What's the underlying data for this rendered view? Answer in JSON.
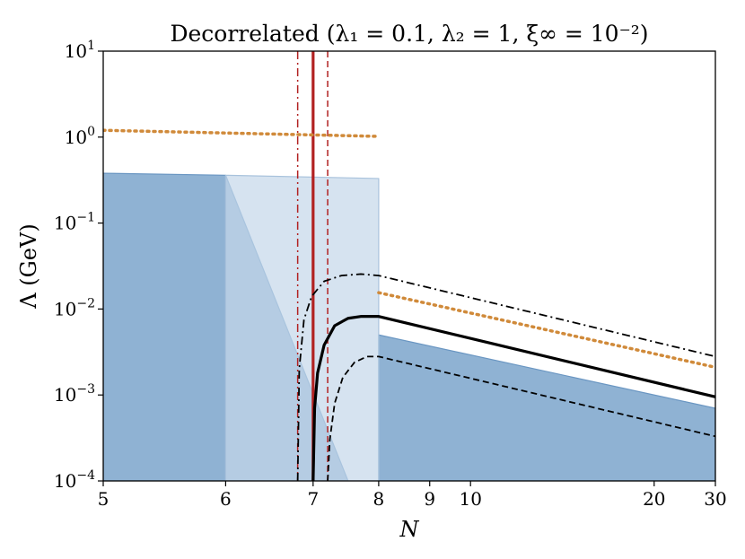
{
  "chart_data": {
    "type": "line",
    "title": "Decorrelated (λ₁ = 0.1, λ₂ = 1, ξ∞ = 10⁻²)",
    "xlabel": "N",
    "ylabel": "Λ (GeV)",
    "x_scale": "reciprocal",
    "y_scale": "log",
    "xlim": [
      5,
      30
    ],
    "ylim": [
      0.0001,
      10
    ],
    "grid": false,
    "x_ticks": [
      {
        "value": 5,
        "label": "5"
      },
      {
        "value": 6,
        "label": "6"
      },
      {
        "value": 7,
        "label": "7"
      },
      {
        "value": 8,
        "label": "8"
      },
      {
        "value": 9,
        "label": "9"
      },
      {
        "value": 10,
        "label": "10"
      },
      {
        "value": 20,
        "label": "20"
      },
      {
        "value": 30,
        "label": "30"
      }
    ],
    "y_ticks": [
      {
        "value": 0.0001,
        "base": "10",
        "exp": "−4"
      },
      {
        "value": 0.001,
        "base": "10",
        "exp": "−3"
      },
      {
        "value": 0.01,
        "base": "10",
        "exp": "−2"
      },
      {
        "value": 0.1,
        "base": "10",
        "exp": "−1"
      },
      {
        "value": 1,
        "base": "10",
        "exp": "0"
      },
      {
        "value": 10,
        "base": "10",
        "exp": "1"
      }
    ],
    "regions": [
      {
        "kind": "excluded-dark",
        "color": "#8fb2d3",
        "stroke": "#6a96c2",
        "opacity": 1,
        "points": [
          [
            5,
            0.0001
          ],
          [
            5,
            0.38
          ],
          [
            6,
            0.36
          ],
          [
            7.5,
            0.0001
          ]
        ]
      },
      {
        "kind": "excluded-dark",
        "color": "#8fb2d3",
        "stroke": "#6a96c2",
        "opacity": 1,
        "points": [
          [
            8,
            0.0001
          ],
          [
            8,
            0.005
          ],
          [
            30,
            0.0007
          ],
          [
            30,
            0.0001
          ]
        ]
      },
      {
        "kind": "excluded-light",
        "color": "#c5d7e9",
        "stroke": "#a8c2dc",
        "opacity": 0.7,
        "points": [
          [
            6,
            0.0001
          ],
          [
            6,
            0.36
          ],
          [
            8,
            0.33
          ],
          [
            8,
            0.0001
          ]
        ]
      }
    ],
    "series": [
      {
        "style": "dotted",
        "color": "#d08a3a",
        "width": 3.5,
        "points": [
          [
            5,
            1.2
          ],
          [
            8,
            1.02
          ]
        ]
      },
      {
        "style": "dotted",
        "color": "#d08a3a",
        "width": 3.5,
        "points": [
          [
            8,
            0.0155
          ],
          [
            30,
            0.0021
          ]
        ]
      },
      {
        "style": "solid",
        "color": "#000000",
        "width": 3.2,
        "points": [
          [
            7.0,
            0.0001
          ],
          [
            7.02,
            0.0007
          ],
          [
            7.06,
            0.0018
          ],
          [
            7.15,
            0.0038
          ],
          [
            7.3,
            0.0064
          ],
          [
            7.5,
            0.0078
          ],
          [
            7.7,
            0.0082
          ],
          [
            8.0,
            0.0082
          ],
          [
            30,
            0.00095
          ]
        ]
      },
      {
        "style": "dashdot",
        "color": "#000000",
        "width": 1.8,
        "points": [
          [
            6.8,
            0.0001
          ],
          [
            6.82,
            0.002
          ],
          [
            6.88,
            0.0075
          ],
          [
            6.98,
            0.014
          ],
          [
            7.15,
            0.021
          ],
          [
            7.4,
            0.0245
          ],
          [
            7.7,
            0.0255
          ],
          [
            8.0,
            0.0245
          ],
          [
            30,
            0.0028
          ]
        ]
      },
      {
        "style": "dashed",
        "color": "#000000",
        "width": 1.8,
        "points": [
          [
            7.2,
            0.0001
          ],
          [
            7.23,
            0.0003
          ],
          [
            7.3,
            0.0008
          ],
          [
            7.42,
            0.0016
          ],
          [
            7.6,
            0.0024
          ],
          [
            7.8,
            0.0028
          ],
          [
            8.0,
            0.0028
          ],
          [
            30,
            0.00033
          ]
        ]
      }
    ],
    "vlines": [
      {
        "x": 7.0,
        "style": "solid",
        "color": "#b22222",
        "width": 3.2
      },
      {
        "x": 6.8,
        "style": "dashdot",
        "color": "#b22222",
        "width": 1.5
      },
      {
        "x": 7.2,
        "style": "dashed",
        "color": "#b22222",
        "width": 1.5
      }
    ]
  }
}
